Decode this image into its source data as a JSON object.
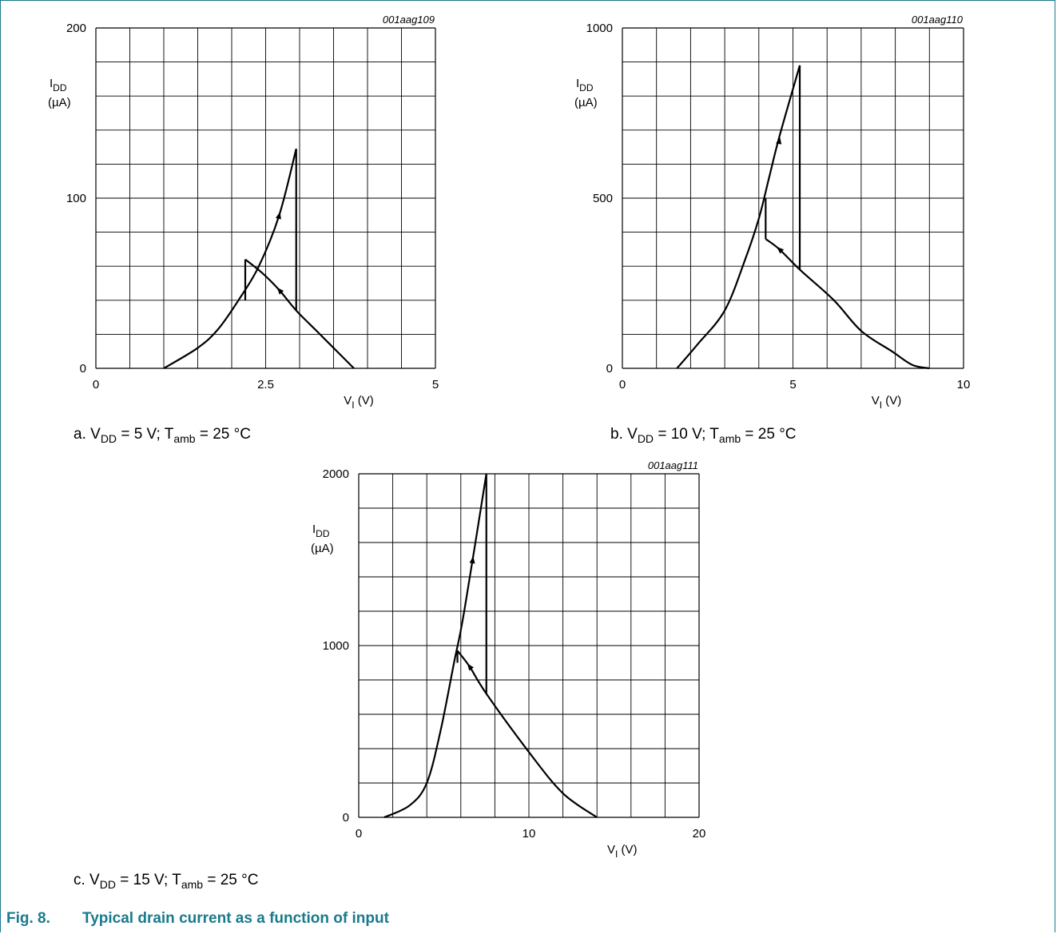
{
  "figure": {
    "number": "Fig. 8.",
    "title": "Typical drain current as a function of input",
    "accent_color": "#1a7a8c"
  },
  "chart_data": [
    {
      "type": "line",
      "id": "001aag109",
      "caption": {
        "prefix": "a. V",
        "vdd_sub": "DD",
        "mid": " = 5 V; T",
        "tamb_sub": "amb",
        "suffix": " = 25 °C"
      },
      "ylabel": {
        "main": "I",
        "sub": "DD",
        "unit": "(µA)"
      },
      "xlabel": {
        "main": "V",
        "sub": "I",
        "unit": " (V)"
      },
      "xlim": [
        0,
        5
      ],
      "ylim": [
        0,
        200
      ],
      "xticks": [
        "0",
        "2.5",
        "5"
      ],
      "yticks": [
        "0",
        "100",
        "200"
      ],
      "grid": {
        "x_divisions": 10,
        "y_divisions": 10
      },
      "series": [
        {
          "values_xy": [
            [
              1.0,
              0
            ],
            [
              1.5,
              12
            ],
            [
              1.8,
              23
            ],
            [
              2.1,
              40
            ],
            [
              2.4,
              60
            ],
            [
              2.7,
              90
            ],
            [
              2.95,
              129
            ]
          ]
        },
        {
          "values_xy": [
            [
              2.95,
              129
            ],
            [
              2.95,
              34
            ]
          ]
        },
        {
          "values_xy": [
            [
              3.8,
              0
            ],
            [
              3.5,
              12
            ],
            [
              3.25,
              22
            ],
            [
              2.95,
              34
            ],
            [
              2.7,
              46
            ],
            [
              2.45,
              56
            ],
            [
              2.2,
              64
            ]
          ]
        },
        {
          "values_xy": [
            [
              2.2,
              64
            ],
            [
              2.2,
              40
            ]
          ]
        }
      ],
      "arrows": [
        {
          "at": [
            2.7,
            90
          ],
          "toward": [
            2.8,
            106
          ]
        },
        {
          "at": [
            2.7,
            46
          ],
          "toward": [
            2.5,
            55
          ]
        }
      ]
    },
    {
      "type": "line",
      "id": "001aag110",
      "caption": {
        "prefix": "b. V",
        "vdd_sub": "DD",
        "mid": " = 10 V; T",
        "tamb_sub": "amb",
        "suffix": " = 25 °C"
      },
      "ylabel": {
        "main": "I",
        "sub": "DD",
        "unit": "(µA)"
      },
      "xlabel": {
        "main": "V",
        "sub": "I",
        "unit": " (V)"
      },
      "xlim": [
        0,
        10
      ],
      "ylim": [
        0,
        1000
      ],
      "xticks": [
        "0",
        "5",
        "10"
      ],
      "yticks": [
        "0",
        "500",
        "1000"
      ],
      "grid": {
        "x_divisions": 10,
        "y_divisions": 10
      },
      "series": [
        {
          "values_xy": [
            [
              1.6,
              0
            ],
            [
              2.2,
              70
            ],
            [
              3.0,
              170
            ],
            [
              3.6,
              320
            ],
            [
              4.0,
              440
            ],
            [
              4.3,
              560
            ],
            [
              4.6,
              680
            ],
            [
              5.2,
              890
            ]
          ]
        },
        {
          "values_xy": [
            [
              5.2,
              890
            ],
            [
              5.2,
              290
            ]
          ]
        },
        {
          "values_xy": [
            [
              9.0,
              0
            ],
            [
              8.5,
              10
            ],
            [
              7.9,
              50
            ],
            [
              7.0,
              110
            ],
            [
              6.2,
              200
            ],
            [
              5.2,
              290
            ],
            [
              4.6,
              350
            ],
            [
              4.2,
              380
            ]
          ]
        },
        {
          "values_xy": [
            [
              4.2,
              380
            ],
            [
              4.2,
              500
            ]
          ]
        }
      ],
      "arrows": [
        {
          "at": [
            4.6,
            670
          ],
          "toward": [
            4.7,
            730
          ]
        },
        {
          "at": [
            4.6,
            350
          ],
          "toward": [
            4.4,
            368
          ]
        }
      ]
    },
    {
      "type": "line",
      "id": "001aag111",
      "caption": {
        "prefix": "c. V",
        "vdd_sub": "DD",
        "mid": " = 15 V; T",
        "tamb_sub": "amb",
        "suffix": " = 25 °C"
      },
      "ylabel": {
        "main": "I",
        "sub": "DD",
        "unit": "(µA)"
      },
      "xlabel": {
        "main": "V",
        "sub": "I",
        "unit": " (V)"
      },
      "xlim": [
        0,
        20
      ],
      "ylim": [
        0,
        2000
      ],
      "xticks": [
        "0",
        "10",
        "20"
      ],
      "yticks": [
        "0",
        "1000",
        "2000"
      ],
      "grid": {
        "x_divisions": 10,
        "y_divisions": 10
      },
      "series": [
        {
          "values_xy": [
            [
              1.5,
              0
            ],
            [
              3.0,
              70
            ],
            [
              4.0,
              200
            ],
            [
              4.8,
              500
            ],
            [
              5.6,
              900
            ],
            [
              6.2,
              1200
            ],
            [
              7.5,
              2000
            ]
          ]
        },
        {
          "values_xy": [
            [
              7.5,
              2000
            ],
            [
              7.5,
              720
            ]
          ]
        },
        {
          "values_xy": [
            [
              14.0,
              0
            ],
            [
              12.0,
              140
            ],
            [
              10.0,
              380
            ],
            [
              7.5,
              720
            ],
            [
              6.5,
              880
            ],
            [
              5.8,
              970
            ]
          ]
        },
        {
          "values_xy": [
            [
              5.8,
              970
            ],
            [
              5.8,
              900
            ]
          ]
        }
      ],
      "arrows": [
        {
          "at": [
            6.7,
            1500
          ],
          "toward": [
            6.85,
            1600
          ]
        },
        {
          "at": [
            6.5,
            880
          ],
          "toward": [
            6.2,
            920
          ]
        }
      ]
    }
  ]
}
